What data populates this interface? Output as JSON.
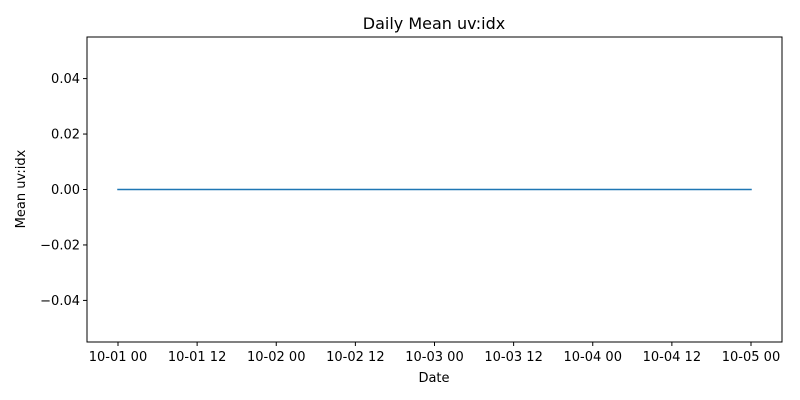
{
  "chart_data": {
    "type": "line",
    "title": "Daily Mean uv:idx",
    "xlabel": "Date",
    "ylabel": "Mean uv:idx",
    "x": [
      "10-01 00",
      "10-02 00",
      "10-03 00",
      "10-04 00",
      "10-05 00"
    ],
    "series": [
      {
        "values": [
          0,
          0,
          0,
          0,
          0
        ],
        "color": "#1f77b4"
      }
    ],
    "x_ticks": [
      "10-01 00",
      "10-01 12",
      "10-02 00",
      "10-02 12",
      "10-03 00",
      "10-03 12",
      "10-04 00",
      "10-04 12",
      "10-05 00"
    ],
    "y_ticks": [
      "0.04",
      "0.02",
      "0.00",
      "−0.02",
      "−0.04"
    ],
    "y_tick_values": [
      0.04,
      0.02,
      0.0,
      -0.02,
      -0.04
    ],
    "ylim": [
      -0.055,
      0.055
    ],
    "grid": false,
    "legend": "none"
  }
}
